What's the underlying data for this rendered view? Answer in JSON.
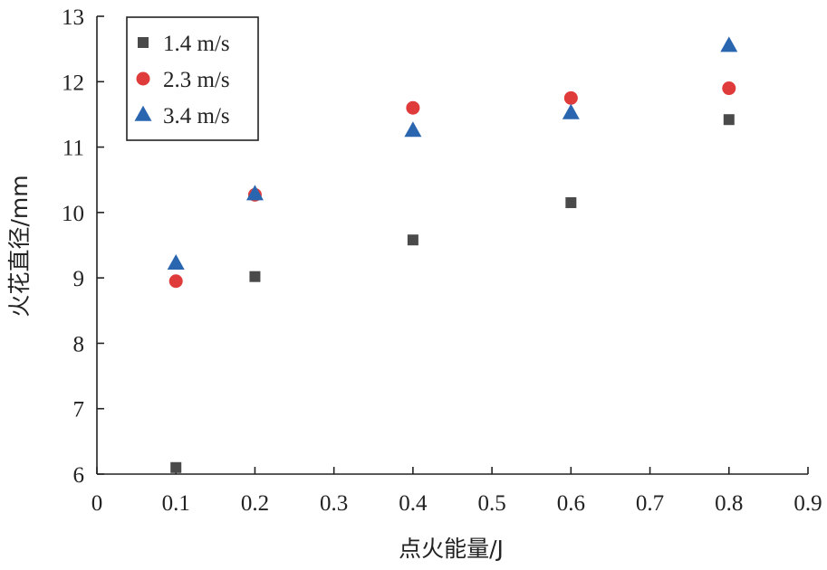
{
  "chart_data": {
    "type": "scatter",
    "title": "",
    "xlabel": "点火能量/J",
    "ylabel": "火花直径/mm",
    "xlim": [
      0,
      0.9
    ],
    "ylim": [
      6,
      13
    ],
    "x_ticks": [
      0,
      0.1,
      0.2,
      0.3,
      0.4,
      0.5,
      0.6,
      0.7,
      0.8,
      0.9
    ],
    "x_tick_labels": [
      "0",
      "0.1",
      "0.2",
      "0.3",
      "0.4",
      "0.5",
      "0.6",
      "0.7",
      "0.8",
      "0.9"
    ],
    "y_ticks": [
      6,
      7,
      8,
      9,
      10,
      11,
      12,
      13
    ],
    "y_tick_labels": [
      "6",
      "7",
      "8",
      "9",
      "10",
      "11",
      "12",
      "13"
    ],
    "grid": false,
    "legend_position": "top-left",
    "series": [
      {
        "name": "1.4 m/s",
        "marker": "square",
        "color": "#4a4a4a",
        "x": [
          0.1,
          0.2,
          0.4,
          0.6,
          0.8
        ],
        "y": [
          6.1,
          9.02,
          9.58,
          10.15,
          11.42
        ]
      },
      {
        "name": "2.3 m/s",
        "marker": "circle",
        "color": "#e03b3b",
        "x": [
          0.1,
          0.2,
          0.4,
          0.6,
          0.8
        ],
        "y": [
          8.95,
          10.27,
          11.6,
          11.75,
          11.9
        ]
      },
      {
        "name": "3.4 m/s",
        "marker": "triangle",
        "color": "#2a66b0",
        "x": [
          0.1,
          0.2,
          0.4,
          0.6,
          0.8
        ],
        "y": [
          9.22,
          10.28,
          11.25,
          11.52,
          12.55
        ]
      }
    ]
  }
}
